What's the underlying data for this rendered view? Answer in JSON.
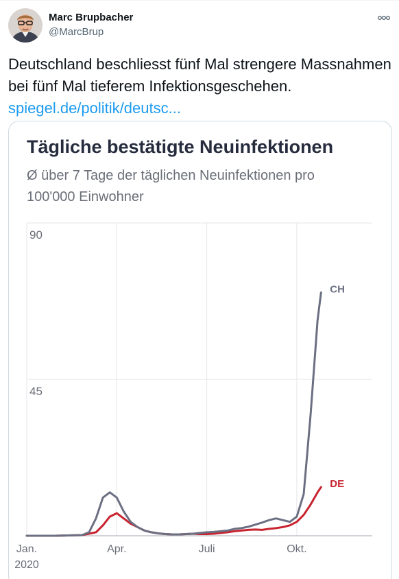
{
  "tweet": {
    "author_name": "Marc Brupbacher",
    "author_handle": "@MarcBrup",
    "text": "Deutschland beschliesst fünf Mal strengere Massnahmen bei fünf Mal tieferem Infektionsgeschehen. ",
    "link_text": "spiegel.de/politik/deutsc...",
    "icons": {
      "avatar": "profile-photo",
      "more": "more-horizontal-icon"
    }
  },
  "chart_data": {
    "type": "line",
    "title": "Tägliche bestätigte Neuinfektionen",
    "subtitle": "Ø über 7 Tage der täglichen Neuinfektionen pro 100'000 Einwohner",
    "xlabel": "",
    "ylabel": "",
    "ylim": [
      0,
      90
    ],
    "grid": true,
    "y_ticks": [
      "45",
      "90"
    ],
    "x_ticks": [
      {
        "label": "Jan.",
        "sub": "2020",
        "week": 0
      },
      {
        "label": "Apr.",
        "sub": "",
        "week": 13
      },
      {
        "label": "Juli",
        "sub": "",
        "week": 26
      },
      {
        "label": "Okt.",
        "sub": "",
        "week": 39
      }
    ],
    "series": [
      {
        "name": "CH",
        "color": "#6b6f82",
        "points": [
          [
            0,
            0
          ],
          [
            4,
            0
          ],
          [
            8,
            0.2
          ],
          [
            9,
            1
          ],
          [
            10,
            5
          ],
          [
            11,
            11
          ],
          [
            12,
            12.5
          ],
          [
            13,
            11
          ],
          [
            14,
            7
          ],
          [
            15,
            4
          ],
          [
            16,
            2.5
          ],
          [
            17,
            1.5
          ],
          [
            18,
            1
          ],
          [
            19,
            0.7
          ],
          [
            20,
            0.5
          ],
          [
            21,
            0.4
          ],
          [
            22,
            0.4
          ],
          [
            23,
            0.5
          ],
          [
            24,
            0.6
          ],
          [
            25,
            0.8
          ],
          [
            26,
            1
          ],
          [
            27,
            1.1
          ],
          [
            28,
            1.3
          ],
          [
            29,
            1.5
          ],
          [
            30,
            2
          ],
          [
            31,
            2.2
          ],
          [
            32,
            2.6
          ],
          [
            33,
            3.2
          ],
          [
            34,
            3.8
          ],
          [
            35,
            4.5
          ],
          [
            36,
            5
          ],
          [
            37,
            4.5
          ],
          [
            38,
            4
          ],
          [
            39,
            5.5
          ],
          [
            40,
            12
          ],
          [
            41,
            35
          ],
          [
            42,
            62
          ],
          [
            42.5,
            70
          ]
        ]
      },
      {
        "name": "DE",
        "color": "#c8232f",
        "points": [
          [
            0,
            0
          ],
          [
            4,
            0
          ],
          [
            8,
            0.2
          ],
          [
            10,
            1
          ],
          [
            11,
            3
          ],
          [
            12,
            5.5
          ],
          [
            13,
            6.5
          ],
          [
            14,
            5
          ],
          [
            15,
            3.5
          ],
          [
            16,
            2.5
          ],
          [
            17,
            1.5
          ],
          [
            18,
            1
          ],
          [
            19,
            0.7
          ],
          [
            20,
            0.5
          ],
          [
            21,
            0.4
          ],
          [
            22,
            0.4
          ],
          [
            23,
            0.5
          ],
          [
            24,
            0.6
          ],
          [
            25,
            0.5
          ],
          [
            26,
            0.5
          ],
          [
            27,
            0.6
          ],
          [
            28,
            0.8
          ],
          [
            29,
            1
          ],
          [
            30,
            1.3
          ],
          [
            31,
            1.5
          ],
          [
            32,
            1.7
          ],
          [
            33,
            1.8
          ],
          [
            34,
            1.7
          ],
          [
            35,
            2
          ],
          [
            36,
            2.2
          ],
          [
            37,
            2.5
          ],
          [
            38,
            3
          ],
          [
            39,
            4
          ],
          [
            40,
            6
          ],
          [
            41,
            9
          ],
          [
            42,
            12.5
          ],
          [
            42.5,
            14
          ]
        ]
      }
    ]
  }
}
